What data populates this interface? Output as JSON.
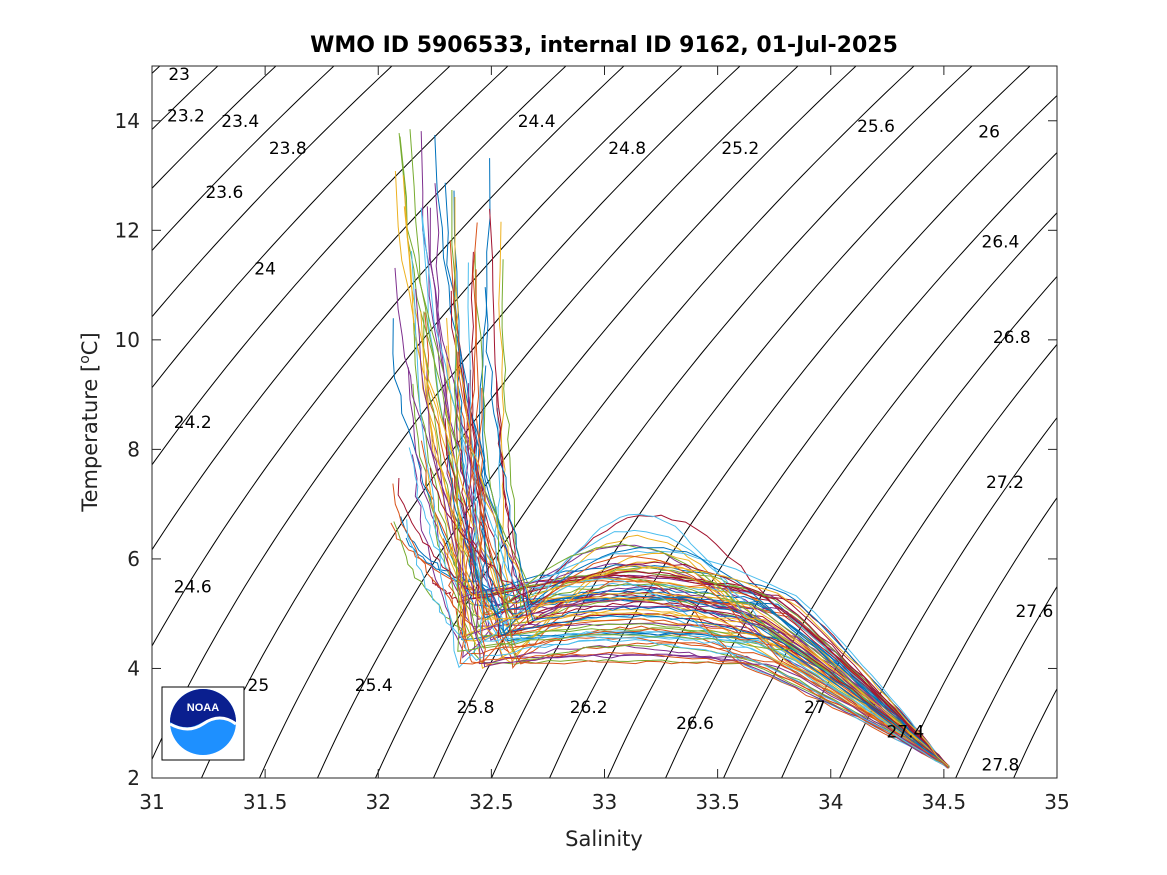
{
  "chart_data": {
    "type": "line",
    "title": "WMO ID 5906533, internal ID 9162, 01-Jul-2025",
    "xlabel": "Salinity",
    "ylabel": "Temperature [",
    "ylabel_unit": "C]",
    "ylabel_sup": "o",
    "xlim": [
      31,
      35
    ],
    "ylim": [
      2,
      15
    ],
    "xticks": [
      31,
      31.5,
      32,
      32.5,
      33,
      33.5,
      34,
      34.5,
      35
    ],
    "xtick_labels": [
      "31",
      "31.5",
      "32",
      "32.5",
      "33",
      "33.5",
      "34",
      "34.5",
      "35"
    ],
    "yticks": [
      2,
      4,
      6,
      8,
      10,
      12,
      14
    ],
    "ytick_labels": [
      "2",
      "4",
      "6",
      "8",
      "10",
      "12",
      "14"
    ],
    "grid": false,
    "isopycnals": {
      "description_units": "sigma-theta (kg/m3 - 1000)",
      "labels": [
        {
          "text": "23",
          "s": 31.12,
          "t": 14.85
        },
        {
          "text": "23.2",
          "s": 31.15,
          "t": 14.1
        },
        {
          "text": "23.4",
          "s": 31.39,
          "t": 14.0
        },
        {
          "text": "23.6",
          "s": 31.32,
          "t": 12.7
        },
        {
          "text": "23.8",
          "s": 31.6,
          "t": 13.5
        },
        {
          "text": "24",
          "s": 31.5,
          "t": 11.3
        },
        {
          "text": "24.2",
          "s": 31.18,
          "t": 8.5
        },
        {
          "text": "24.4",
          "s": 32.7,
          "t": 14.0
        },
        {
          "text": "24.6",
          "s": 31.18,
          "t": 5.5
        },
        {
          "text": "24.8",
          "s": 33.1,
          "t": 13.5
        },
        {
          "text": "25",
          "s": 31.47,
          "t": 3.7
        },
        {
          "text": "25.2",
          "s": 33.6,
          "t": 13.5
        },
        {
          "text": "25.4",
          "s": 31.98,
          "t": 3.7
        },
        {
          "text": "25.6",
          "s": 34.2,
          "t": 13.9
        },
        {
          "text": "25.8",
          "s": 32.43,
          "t": 3.3
        },
        {
          "text": "26",
          "s": 34.7,
          "t": 13.8
        },
        {
          "text": "26.2",
          "s": 32.93,
          "t": 3.3
        },
        {
          "text": "26.4",
          "s": 34.75,
          "t": 11.8
        },
        {
          "text": "26.6",
          "s": 33.4,
          "t": 3.0
        },
        {
          "text": "26.8",
          "s": 34.8,
          "t": 10.05
        },
        {
          "text": "27",
          "s": 33.93,
          "t": 3.3
        },
        {
          "text": "27.2",
          "s": 34.77,
          "t": 7.4
        },
        {
          "text": "27.4",
          "s": 34.33,
          "t": 2.85
        },
        {
          "text": "27.6",
          "s": 34.9,
          "t": 5.05
        },
        {
          "text": "27.8",
          "s": 34.75,
          "t": 2.25
        }
      ]
    },
    "series_summary": {
      "count_approx": 80,
      "note": "Multiple profile T-S curves: warm fresh surface branch (~32.1-32.6 psu, 5-14 °C) bending to a temperature minimum (~4-5 °C, 32.4-33.8 psu) and converging at depth to ~34.52 psu, 2.2 °C",
      "colors": [
        "#0072BD",
        "#D95319",
        "#EDB120",
        "#7E2F8E",
        "#77AC30",
        "#4DBEEE",
        "#A2142F"
      ]
    }
  },
  "logo": {
    "name": "NOAA",
    "text": "NOAA"
  }
}
